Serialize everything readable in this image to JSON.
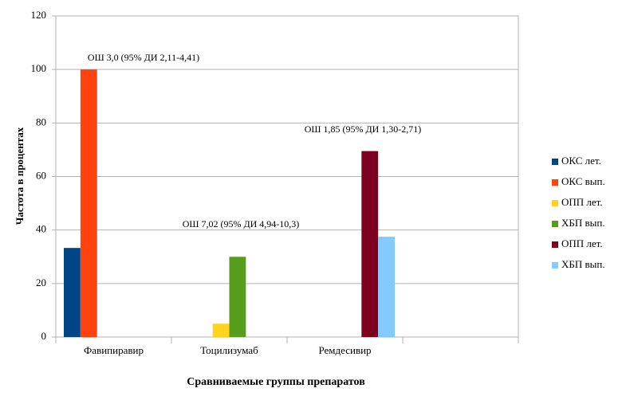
{
  "chart_data": {
    "type": "bar",
    "y_label": "Частота в процентах",
    "x_label": "Сравниваемые группы препаратов",
    "categories": [
      "Фавипиравир",
      "Тоцилизумаб",
      "Ремдесивир",
      null
    ],
    "series": [
      {
        "name": "ОКС лет.",
        "color": "#004586",
        "values": [
          33.3,
          null,
          null,
          null
        ]
      },
      {
        "name": "ОКС вып.",
        "color": "#ff420e",
        "values": [
          100,
          null,
          null,
          null
        ]
      },
      {
        "name": "ОПП лет.",
        "color": "#ffd320",
        "values": [
          null,
          5,
          null,
          null
        ]
      },
      {
        "name": "ХБП вып.",
        "color": "#579d1c",
        "values": [
          null,
          30,
          null,
          null
        ]
      },
      {
        "name": "ОПП лет.",
        "color": "#7e0021",
        "values": [
          null,
          null,
          69.5,
          null
        ]
      },
      {
        "name": "ХБП вып.",
        "color": "#83caff",
        "values": [
          null,
          null,
          37.5,
          null
        ]
      }
    ],
    "annotations": [
      "ОШ 3,0 (95% ДИ 2,11-4,41)",
      "ОШ 7,02 (95% ДИ 4,94-10,3)",
      "ОШ 1,85 (95% ДИ 1,30-2,71)"
    ],
    "ylim": [
      0,
      120
    ],
    "yticks": [
      0,
      20,
      40,
      60,
      80,
      100,
      120
    ],
    "grid": true,
    "legend": "right"
  }
}
